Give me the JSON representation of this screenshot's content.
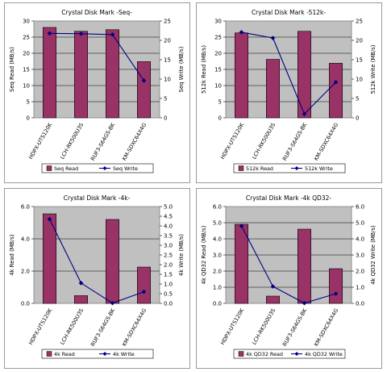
{
  "style": {
    "bar_color": "#993366",
    "line_color": "#000080",
    "plot_bg": "#c0c0c0"
  },
  "chart_data": [
    {
      "type": "bar",
      "title": "Crystal Disk Mark -Seq-",
      "categories": [
        "HDPX-UTS120K",
        "LCH-RK500U3S",
        "RUF3-S64GS-BK",
        "KM-SDXC64X4G"
      ],
      "ylabel": "Seq Read (MB/s)",
      "y2label": "Seq Write (MB/s)",
      "ylim": [
        0,
        30
      ],
      "yticks": [
        "0",
        "5",
        "10",
        "15",
        "20",
        "25",
        "30"
      ],
      "y2lim": [
        0,
        25
      ],
      "y2ticks": [
        "0",
        "5",
        "10",
        "15",
        "20",
        "25"
      ],
      "series": [
        {
          "name": "Seq Read",
          "kind": "bar",
          "axis": "left",
          "values": [
            28.0,
            26.8,
            27.3,
            17.4
          ]
        },
        {
          "name": "Seq Write",
          "kind": "line",
          "axis": "right",
          "values": [
            21.8,
            21.7,
            21.5,
            9.6
          ]
        }
      ],
      "legend": "bottom"
    },
    {
      "type": "bar",
      "title": "Crystal Disk Mark -512k-",
      "categories": [
        "HDPX-UTS120K",
        "LCH-RK500U3S",
        "RUF3-S64GS-BK",
        "KM-SDXC64X4G"
      ],
      "ylabel": "512k Read (MB/s)",
      "y2label": "512k Write (MB/s)",
      "ylim": [
        0,
        30
      ],
      "yticks": [
        "0",
        "5",
        "10",
        "15",
        "20",
        "25",
        "30"
      ],
      "y2lim": [
        0,
        25
      ],
      "y2ticks": [
        "0",
        "5",
        "10",
        "15",
        "20",
        "25"
      ],
      "series": [
        {
          "name": "512k Read",
          "kind": "bar",
          "axis": "left",
          "values": [
            26.3,
            18.1,
            26.8,
            16.9
          ]
        },
        {
          "name": "512k Write",
          "kind": "line",
          "axis": "right",
          "values": [
            22.1,
            20.6,
            1.0,
            9.2
          ]
        }
      ],
      "legend": "bottom"
    },
    {
      "type": "bar",
      "title": "Crystal Disk Mark -4k-",
      "categories": [
        "HDPX-UTS120K",
        "LCH-RK500U3S",
        "RUF3-S64GS-BK",
        "KM-SDXC64X4G"
      ],
      "ylabel": "4k Read (MB/s)",
      "y2label": "4k Write (MB/s)",
      "ylim": [
        0,
        6
      ],
      "yticks": [
        "0.0",
        "2.0",
        "4.0",
        "6.0"
      ],
      "y2lim": [
        0,
        5
      ],
      "y2ticks": [
        "0.0",
        "0.5",
        "1.0",
        "1.5",
        "2.0",
        "2.5",
        "3.0",
        "3.5",
        "4.0",
        "4.5",
        "5.0"
      ],
      "series": [
        {
          "name": "4k Read",
          "kind": "bar",
          "axis": "left",
          "values": [
            5.55,
            0.48,
            5.2,
            2.25
          ]
        },
        {
          "name": "4k Write",
          "kind": "line",
          "axis": "right",
          "values": [
            4.35,
            1.05,
            0.02,
            0.6
          ]
        }
      ],
      "legend": "bottom"
    },
    {
      "type": "bar",
      "title": "Crystal Disk Mark -4k QD32-",
      "categories": [
        "HDPX-UTS120K",
        "LCH-RK500U3S",
        "RUF3-S64GS-BK",
        "KM-SDXC64X4G"
      ],
      "ylabel": "4k QD32 Read (MB/s)",
      "y2label": "4k QD32 Write (MB/s)",
      "ylim": [
        0,
        6
      ],
      "yticks": [
        "0.0",
        "1.0",
        "2.0",
        "3.0",
        "4.0",
        "5.0",
        "6.0"
      ],
      "y2lim": [
        0,
        6
      ],
      "y2ticks": [
        "0.0",
        "1.0",
        "2.0",
        "3.0",
        "4.0",
        "5.0",
        "6.0"
      ],
      "series": [
        {
          "name": "4k QD32 Read",
          "kind": "bar",
          "axis": "left",
          "values": [
            4.9,
            0.45,
            4.6,
            2.15
          ]
        },
        {
          "name": "4k QD32 Write",
          "kind": "line",
          "axis": "right",
          "values": [
            4.8,
            1.05,
            0.02,
            0.6
          ]
        }
      ],
      "legend": "bottom"
    }
  ]
}
